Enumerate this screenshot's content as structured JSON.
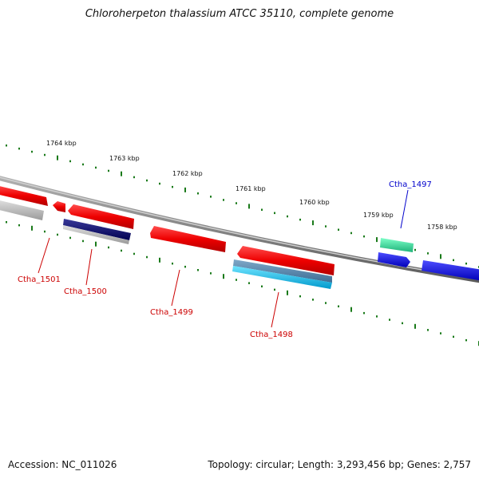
{
  "title": "Chloroherpeton thalassium ATCC 35110, complete genome",
  "footer": {
    "accession": "Accession: NC_011026",
    "summary": "Topology: circular; Length: 3,293,456 bp; Genes: 2,757"
  },
  "colors": {
    "backbone": "#808080",
    "ticks": "#1a7a1a",
    "label_red": "#cc0000",
    "label_blue": "#0000cc"
  },
  "scale_labels": [
    "1764 kbp",
    "1763 kbp",
    "1762 kbp",
    "1761 kbp",
    "1760 kbp",
    "1759 kbp",
    "1758 kbp"
  ],
  "genes": [
    {
      "id": "Ctha_1501",
      "label_color": "red"
    },
    {
      "id": "Ctha_1500",
      "label_color": "red"
    },
    {
      "id": "Ctha_1499",
      "label_color": "red"
    },
    {
      "id": "Ctha_1498",
      "label_color": "red"
    },
    {
      "id": "Ctha_1497",
      "label_color": "blue"
    }
  ]
}
